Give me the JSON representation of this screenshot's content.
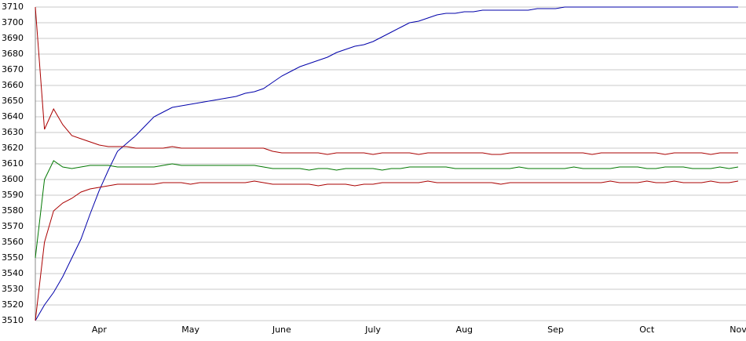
{
  "chart_data": {
    "type": "line",
    "categories": [
      null,
      null,
      null,
      null,
      null,
      null,
      null,
      "Apr",
      null,
      null,
      null,
      null,
      null,
      null,
      null,
      null,
      null,
      "May",
      null,
      null,
      null,
      null,
      null,
      null,
      null,
      null,
      null,
      "June",
      null,
      null,
      null,
      null,
      null,
      null,
      null,
      null,
      null,
      "July",
      null,
      null,
      null,
      null,
      null,
      null,
      null,
      null,
      null,
      "Aug",
      null,
      null,
      null,
      null,
      null,
      null,
      null,
      null,
      null,
      "Sep",
      null,
      null,
      null,
      null,
      null,
      null,
      null,
      null,
      null,
      "Oct",
      null,
      null,
      null,
      null,
      null,
      null,
      null,
      null,
      null,
      "Nov"
    ],
    "series": [
      {
        "color": "#0000aa",
        "values": [
          3510,
          3520,
          3528,
          3538,
          3550,
          3562,
          3578,
          3593,
          3606,
          3618,
          3623,
          3628,
          3634,
          3640,
          3643,
          3646,
          3647,
          3648,
          3649,
          3650,
          3651,
          3652,
          3653,
          3655,
          3656,
          3658,
          3662,
          3666,
          3669,
          3672,
          3674,
          3676,
          3678,
          3681,
          3683,
          3685,
          3686,
          3688,
          3691,
          3694,
          3697,
          3700,
          3701,
          3703,
          3705,
          3706,
          3706,
          3707,
          3707,
          3708,
          3708,
          3708,
          3708,
          3708,
          3708,
          3709,
          3709,
          3709,
          3710,
          3710,
          3710,
          3710,
          3710,
          3710,
          3710,
          3710,
          3710,
          3710,
          3710,
          3710,
          3710,
          3710,
          3710,
          3710,
          3710,
          3710,
          3710,
          3710
        ]
      },
      {
        "color": "#aa0000",
        "values": [
          3710,
          3632,
          3645,
          3635,
          3628,
          3626,
          3624,
          3622,
          3621,
          3621,
          3621,
          3620,
          3620,
          3620,
          3620,
          3621,
          3620,
          3620,
          3620,
          3620,
          3620,
          3620,
          3620,
          3620,
          3620,
          3620,
          3618,
          3617,
          3617,
          3617,
          3617,
          3617,
          3616,
          3617,
          3617,
          3617,
          3617,
          3616,
          3617,
          3617,
          3617,
          3617,
          3616,
          3617,
          3617,
          3617,
          3617,
          3617,
          3617,
          3617,
          3616,
          3616,
          3617,
          3617,
          3617,
          3617,
          3617,
          3617,
          3617,
          3617,
          3617,
          3616,
          3617,
          3617,
          3617,
          3617,
          3617,
          3617,
          3617,
          3616,
          3617,
          3617,
          3617,
          3617,
          3616,
          3617,
          3617,
          3617
        ]
      },
      {
        "color": "#007700",
        "values": [
          3550,
          3600,
          3612,
          3608,
          3607,
          3608,
          3609,
          3609,
          3609,
          3608,
          3608,
          3608,
          3608,
          3608,
          3609,
          3610,
          3609,
          3609,
          3609,
          3609,
          3609,
          3609,
          3609,
          3609,
          3609,
          3608,
          3607,
          3607,
          3607,
          3607,
          3606,
          3607,
          3607,
          3606,
          3607,
          3607,
          3607,
          3607,
          3606,
          3607,
          3607,
          3608,
          3608,
          3608,
          3608,
          3608,
          3607,
          3607,
          3607,
          3607,
          3607,
          3607,
          3607,
          3608,
          3607,
          3607,
          3607,
          3607,
          3607,
          3608,
          3607,
          3607,
          3607,
          3607,
          3608,
          3608,
          3608,
          3607,
          3607,
          3608,
          3608,
          3608,
          3607,
          3607,
          3607,
          3608,
          3607,
          3608
        ]
      },
      {
        "color": "#aa0000",
        "values": [
          3510,
          3560,
          3580,
          3585,
          3588,
          3592,
          3594,
          3595,
          3596,
          3597,
          3597,
          3597,
          3597,
          3597,
          3598,
          3598,
          3598,
          3597,
          3598,
          3598,
          3598,
          3598,
          3598,
          3598,
          3599,
          3598,
          3597,
          3597,
          3597,
          3597,
          3597,
          3596,
          3597,
          3597,
          3597,
          3596,
          3597,
          3597,
          3598,
          3598,
          3598,
          3598,
          3598,
          3599,
          3598,
          3598,
          3598,
          3598,
          3598,
          3598,
          3598,
          3597,
          3598,
          3598,
          3598,
          3598,
          3598,
          3598,
          3598,
          3598,
          3598,
          3598,
          3598,
          3599,
          3598,
          3598,
          3598,
          3599,
          3598,
          3598,
          3599,
          3598,
          3598,
          3598,
          3599,
          3598,
          3598,
          3599
        ]
      }
    ],
    "ylim": [
      3510,
      3710
    ],
    "yticks": [
      3510,
      3520,
      3530,
      3540,
      3550,
      3560,
      3570,
      3580,
      3590,
      3600,
      3610,
      3620,
      3630,
      3640,
      3650,
      3660,
      3670,
      3680,
      3690,
      3700,
      3710
    ],
    "grid": true
  }
}
